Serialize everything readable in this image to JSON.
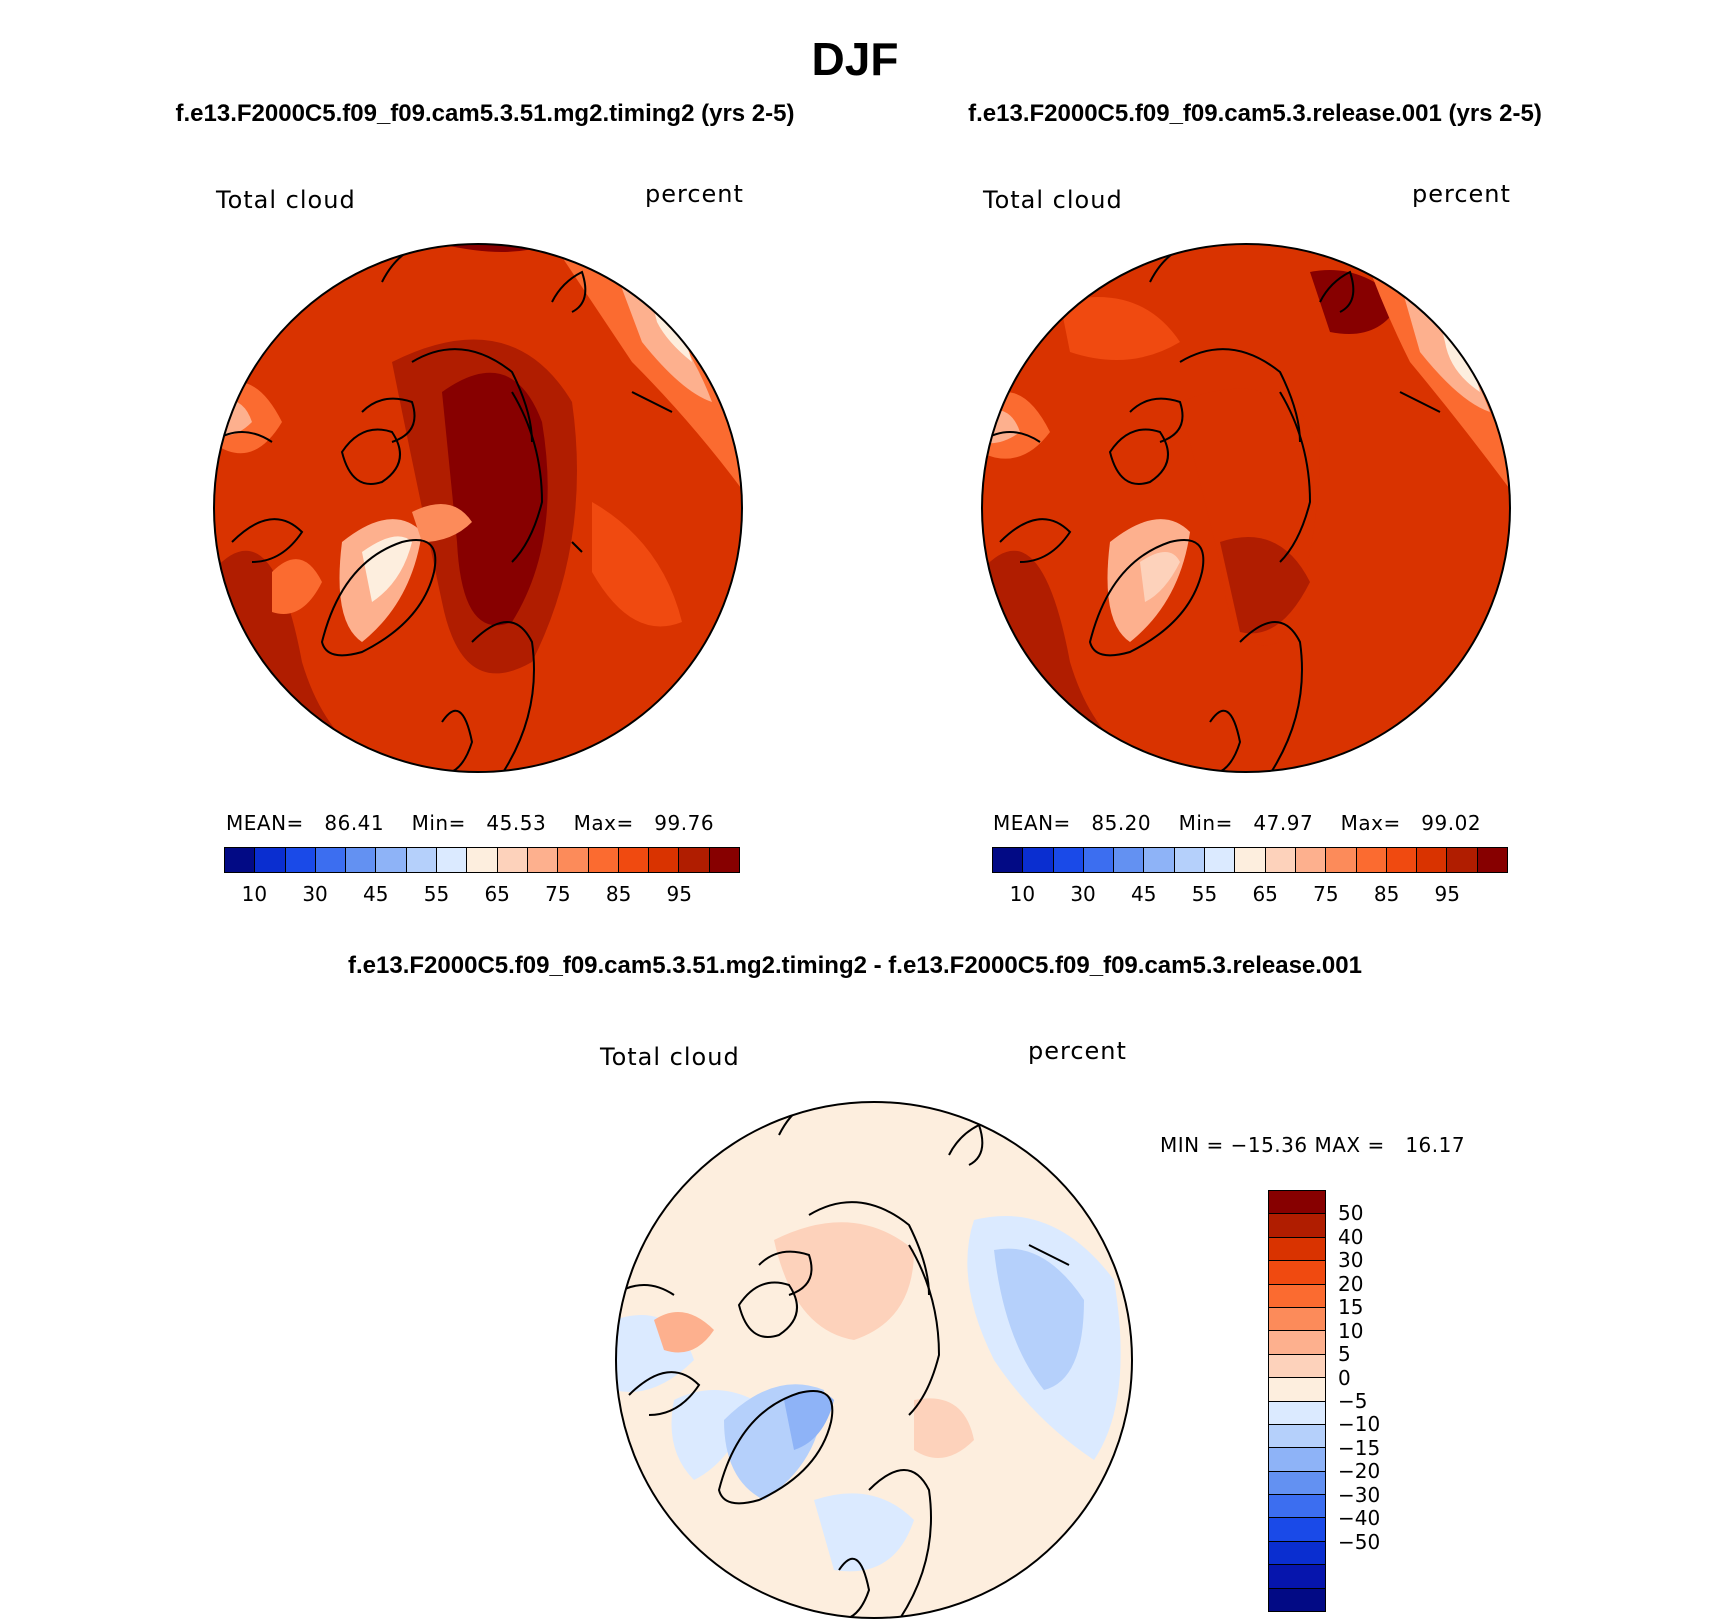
{
  "title": "DJF",
  "panels": [
    {
      "case_title": "f.e13.F2000C5.f09_f09.cam5.3.51.mg2.timing2 (yrs 2-5)",
      "variable": "Total cloud",
      "units": "percent",
      "mean_label": "MEAN=",
      "mean": "86.41",
      "min_label": "Min=",
      "min": "45.53",
      "max_label": "Max=",
      "max": "99.76"
    },
    {
      "case_title": "f.e13.F2000C5.f09_f09.cam5.3.release.001 (yrs 2-5)",
      "variable": "Total cloud",
      "units": "percent",
      "mean_label": "MEAN=",
      "mean": "85.20",
      "min_label": "Min=",
      "min": "47.97",
      "max_label": "Max=",
      "max": "99.02"
    }
  ],
  "difference": {
    "title": "f.e13.F2000C5.f09_f09.cam5.3.51.mg2.timing2 - f.e13.F2000C5.f09_f09.cam5.3.release.001",
    "variable": "Total cloud",
    "units": "percent",
    "min_label": "MIN =",
    "min": "−15.36",
    "max_label": "MAX =",
    "max": "16.17",
    "colorbar_labels": [
      "50",
      "40",
      "30",
      "20",
      "15",
      "10",
      "5",
      "0",
      "−5",
      "−10",
      "−15",
      "−20",
      "−30",
      "−40",
      "−50"
    ],
    "colors": [
      "#870000",
      "#b01d00",
      "#d93300",
      "#f04a10",
      "#fb6b30",
      "#fc8b5a",
      "#fdb08e",
      "#fdd2bb",
      "#fdeede",
      "#dbeaff",
      "#b5d0fb",
      "#8eb3f7",
      "#6391f2",
      "#3c6ef0",
      "#1a4ae8",
      "#0a2ed0",
      "#0615ad",
      "#020a85"
    ]
  },
  "colorbar": {
    "labels": [
      "10",
      "30",
      "45",
      "55",
      "65",
      "75",
      "85",
      "95"
    ],
    "colors": [
      "#020a85",
      "#0a2ed0",
      "#1a4ae8",
      "#3c6ef0",
      "#6391f2",
      "#8eb3f7",
      "#b5d0fb",
      "#dbeaff",
      "#fdeede",
      "#fdd2bb",
      "#fdb08e",
      "#fc8b5a",
      "#fb6b30",
      "#f04a10",
      "#d93300",
      "#b01d00",
      "#870000"
    ]
  },
  "map_legend": {
    "projection": "north polar stereographic",
    "land_outline": "coastlines"
  }
}
